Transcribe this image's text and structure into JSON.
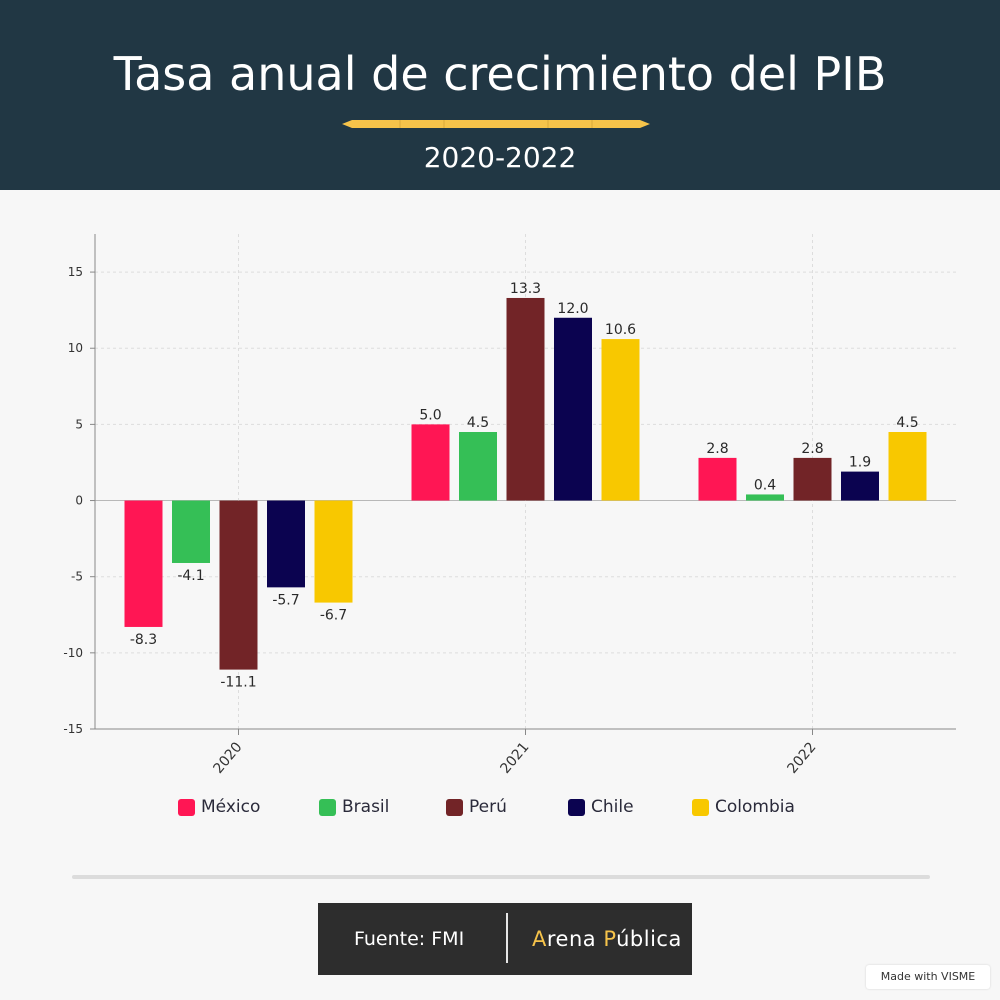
{
  "header": {
    "title": "Tasa anual de crecimiento del PIB",
    "subtitle": "2020-2022"
  },
  "colors": {
    "header_bg": "#213744",
    "accent": "#f6c34a",
    "mexico": "#ff1654",
    "brasil": "#35bf56",
    "peru": "#722427",
    "chile": "#0b0350",
    "colombia": "#f8c800"
  },
  "chart_data": {
    "type": "bar",
    "categories": [
      "2020",
      "2021",
      "2022"
    ],
    "series": [
      {
        "name": "México",
        "color": "#ff1654",
        "values": [
          -8.3,
          5.0,
          2.8
        ],
        "labels": [
          "-8.3",
          "5.0",
          "2.8"
        ]
      },
      {
        "name": "Brasil",
        "color": "#35bf56",
        "values": [
          -4.1,
          4.5,
          0.4
        ],
        "labels": [
          "-4.1",
          "4.5",
          "0.4"
        ]
      },
      {
        "name": "Perú",
        "color": "#722427",
        "values": [
          -11.1,
          13.3,
          2.8
        ],
        "labels": [
          "-11.1",
          "13.3",
          "2.8"
        ]
      },
      {
        "name": "Chile",
        "color": "#0b0350",
        "values": [
          -5.7,
          12.0,
          1.9
        ],
        "labels": [
          "-5.7",
          "12.0",
          "1.9"
        ]
      },
      {
        "name": "Colombia",
        "color": "#f8c800",
        "values": [
          -6.7,
          10.6,
          4.5
        ],
        "labels": [
          "-6.7",
          "10.6",
          "4.5"
        ]
      }
    ],
    "ylim": [
      -15,
      17.5
    ],
    "yticks": [
      -15,
      -10,
      -5,
      0,
      5,
      10,
      15
    ],
    "ytick_labels": [
      "-15",
      "-10",
      "-5",
      "0",
      "5",
      "10",
      "15"
    ],
    "grid": true,
    "legend": "bottom"
  },
  "footer": {
    "source": "Fuente: FMI",
    "brand_a": "A",
    "brand_rest1": "rena ",
    "brand_p": "P",
    "brand_rest2": "ública",
    "made_with": "Made with VISME"
  }
}
